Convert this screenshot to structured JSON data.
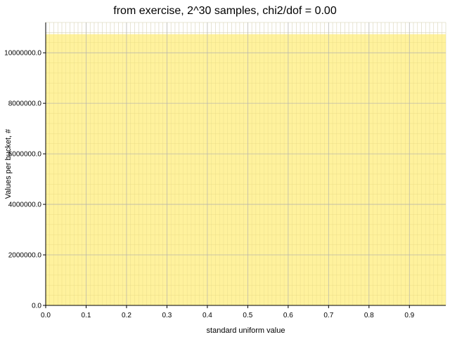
{
  "chart_data": {
    "type": "bar",
    "title": "from exercise, 2^30 samples, chi2/dof = 0.00",
    "xlabel": "standard uniform value",
    "ylabel": "Values per bucket, #",
    "xlim": [
      0.0,
      0.99
    ],
    "ylim": [
      0,
      11200000
    ],
    "x_ticks": [
      "0.0",
      "0.1",
      "0.2",
      "0.3",
      "0.4",
      "0.5",
      "0.6",
      "0.7",
      "0.8",
      "0.9"
    ],
    "y_ticks": [
      "0.0",
      "2000000.0",
      "4000000.0",
      "6000000.0",
      "8000000.0",
      "10000000.0"
    ],
    "bucket_count": 100,
    "bucket_value": 10737418,
    "grid": true,
    "bar_color": "#fff08c",
    "grid_major_color": "#b0b0b0",
    "grid_minor_color": "#dcdcdc"
  }
}
